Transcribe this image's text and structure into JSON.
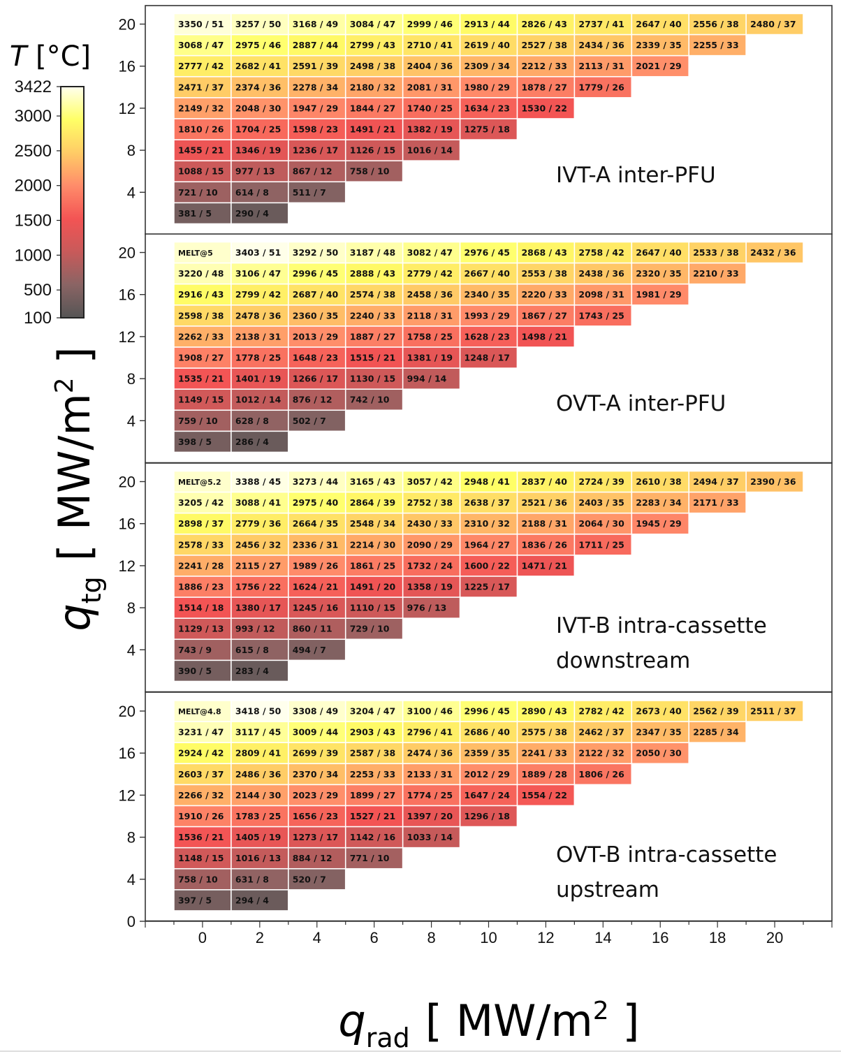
{
  "chart_data": {
    "type": "heatmap",
    "xlabel": {
      "symbol": "q",
      "subscript": "rad",
      "unit": "[ MW/m",
      "superscript": "2",
      "close": " ]"
    },
    "ylabel": {
      "symbol": "q",
      "subscript": "tg",
      "unit": "[ MW/m",
      "superscript": "2",
      "close": " ]"
    },
    "x_ticks": [
      "0",
      "2",
      "4",
      "6",
      "8",
      "10",
      "12",
      "14",
      "16",
      "18",
      "20"
    ],
    "y_ticks": [
      "4",
      "8",
      "12",
      "16",
      "20"
    ],
    "y_tick_zero": "0",
    "xlim": [
      -2,
      22
    ],
    "ylim_panel": [
      0,
      21.6
    ],
    "colorbar": {
      "label_symbol": "T",
      "label_unit": " [°C]",
      "min": 100,
      "max": 3422,
      "ticks": [
        "3422",
        "3000",
        "2500",
        "2000",
        "1500",
        "1000",
        "500",
        "100"
      ],
      "colors": [
        "#555555",
        "#8a6464",
        "#c85a5a",
        "#f35454",
        "#ff8c6a",
        "#ffcc66",
        "#ffff66",
        "#ffffee"
      ]
    },
    "panels": [
      {
        "title_lines": [
          "IVT-A inter-PFU"
        ],
        "rows": [
          [
            "381 / 5",
            "290 / 4"
          ],
          [
            "721 / 10",
            "614 / 8",
            "511 / 7"
          ],
          [
            "1088 / 15",
            "977 / 13",
            "867 / 12",
            "758 / 10"
          ],
          [
            "1455 / 21",
            "1346 / 19",
            "1236 / 17",
            "1126 / 15",
            "1016 / 14"
          ],
          [
            "1810 / 26",
            "1704 / 25",
            "1598 / 23",
            "1491 / 21",
            "1382 / 19",
            "1275 / 18"
          ],
          [
            "2149 / 32",
            "2048 / 30",
            "1947 / 29",
            "1844 / 27",
            "1740 / 25",
            "1634 / 23",
            "1530 / 22"
          ],
          [
            "2471 / 37",
            "2374 / 36",
            "2278 / 34",
            "2180 / 32",
            "2081 / 31",
            "1980 / 29",
            "1878 / 27",
            "1779 / 26"
          ],
          [
            "2777 / 42",
            "2682 / 41",
            "2591 / 39",
            "2498 / 38",
            "2404 / 36",
            "2309 / 34",
            "2212 / 33",
            "2113 / 31",
            "2021 / 29"
          ],
          [
            "3068 / 47",
            "2975 / 46",
            "2887 / 44",
            "2799 / 43",
            "2710 / 41",
            "2619 / 40",
            "2527 / 38",
            "2434 / 36",
            "2339 / 35",
            "2255 / 33"
          ],
          [
            "3350 / 51",
            "3257 / 50",
            "3168 / 49",
            "3084 / 47",
            "2999 / 46",
            "2913 / 44",
            "2826 / 43",
            "2737 / 41",
            "2647 / 40",
            "2556 / 38",
            "2480 / 37"
          ]
        ]
      },
      {
        "title_lines": [
          "OVT-A inter-PFU"
        ],
        "rows": [
          [
            "398 / 5",
            "286 / 4"
          ],
          [
            "759 / 10",
            "628 / 8",
            "502 / 7"
          ],
          [
            "1149 / 15",
            "1012 / 14",
            "876 / 12",
            "742 / 10"
          ],
          [
            "1535 / 21",
            "1401 / 19",
            "1266 / 17",
            "1130 / 15",
            "994 / 14"
          ],
          [
            "1908 / 27",
            "1778 / 25",
            "1648 / 23",
            "1515 / 21",
            "1381 / 19",
            "1248 / 17"
          ],
          [
            "2262 / 33",
            "2138 / 31",
            "2013 / 29",
            "1887 / 27",
            "1758 / 25",
            "1628 / 23",
            "1498 / 21"
          ],
          [
            "2598 / 38",
            "2478 / 36",
            "2360 / 35",
            "2240 / 33",
            "2118 / 31",
            "1993 / 29",
            "1867 / 27",
            "1743 / 25"
          ],
          [
            "2916 / 43",
            "2799 / 42",
            "2687 / 40",
            "2574 / 38",
            "2458 / 36",
            "2340 / 35",
            "2220 / 33",
            "2098 / 31",
            "1981 / 29"
          ],
          [
            "3220 / 48",
            "3106 / 47",
            "2996 / 45",
            "2888 / 43",
            "2779 / 42",
            "2667 / 40",
            "2553 / 38",
            "2438 / 36",
            "2320 / 35",
            "2210 / 33"
          ],
          [
            "MELT@5",
            "3403 / 51",
            "3292 / 50",
            "3187 / 48",
            "3082 / 47",
            "2976 / 45",
            "2868 / 43",
            "2758 / 42",
            "2647 / 40",
            "2533 / 38",
            "2432 / 36"
          ]
        ]
      },
      {
        "title_lines": [
          "IVT-B intra-cassette",
          "downstream"
        ],
        "rows": [
          [
            "390 / 5",
            "283 / 4"
          ],
          [
            "743 / 9",
            "615 / 8",
            "494 / 7"
          ],
          [
            "1129 / 13",
            "993 / 12",
            "860 / 11",
            "729 / 10"
          ],
          [
            "1514 / 18",
            "1380 / 17",
            "1245 / 16",
            "1110 / 15",
            "976 / 13"
          ],
          [
            "1886 / 23",
            "1756 / 22",
            "1624 / 21",
            "1491 / 20",
            "1358 / 19",
            "1225 / 17"
          ],
          [
            "2241 / 28",
            "2115 / 27",
            "1989 / 26",
            "1861 / 25",
            "1732 / 24",
            "1600 / 22",
            "1471 / 21"
          ],
          [
            "2578 / 33",
            "2456 / 32",
            "2336 / 31",
            "2214 / 30",
            "2090 / 29",
            "1964 / 27",
            "1836 / 26",
            "1711 / 25"
          ],
          [
            "2898 / 37",
            "2779 / 36",
            "2664 / 35",
            "2548 / 34",
            "2430 / 33",
            "2310 / 32",
            "2188 / 31",
            "2064 / 30",
            "1945 / 29"
          ],
          [
            "3205 / 42",
            "3088 / 41",
            "2975 / 40",
            "2864 / 39",
            "2752 / 38",
            "2638 / 37",
            "2521 / 36",
            "2403 / 35",
            "2283 / 34",
            "2171 / 33"
          ],
          [
            "MELT@5.2",
            "3388 / 45",
            "3273 / 44",
            "3165 / 43",
            "3057 / 42",
            "2948 / 41",
            "2837 / 40",
            "2724 / 39",
            "2610 / 38",
            "2494 / 37",
            "2390 / 36"
          ]
        ]
      },
      {
        "title_lines": [
          "OVT-B intra-cassette",
          "upstream"
        ],
        "rows": [
          [
            "397 / 5",
            "294 / 4"
          ],
          [
            "758 / 10",
            "631 / 8",
            "520 / 7"
          ],
          [
            "1148 / 15",
            "1016 / 13",
            "884 / 12",
            "771 / 10"
          ],
          [
            "1536 / 21",
            "1405 / 19",
            "1273 / 17",
            "1142 / 16",
            "1033 / 14"
          ],
          [
            "1910 / 26",
            "1783 / 25",
            "1656 / 23",
            "1527 / 21",
            "1397 / 20",
            "1296 / 18"
          ],
          [
            "2266 / 32",
            "2144 / 30",
            "2023 / 29",
            "1899 / 27",
            "1774 / 25",
            "1647 / 24",
            "1554 / 22"
          ],
          [
            "2603 / 37",
            "2486 / 36",
            "2370 / 34",
            "2253 / 33",
            "2133 / 31",
            "2012 / 29",
            "1889 / 28",
            "1806 / 26"
          ],
          [
            "2924 / 42",
            "2809 / 41",
            "2699 / 39",
            "2587 / 38",
            "2474 / 36",
            "2359 / 35",
            "2241 / 33",
            "2122 / 32",
            "2050 / 30"
          ],
          [
            "3231 / 47",
            "3117 / 45",
            "3009 / 44",
            "2903 / 43",
            "2796 / 41",
            "2686 / 40",
            "2575 / 38",
            "2462 / 37",
            "2347 / 35",
            "2285 / 34"
          ],
          [
            "MELT@4.8",
            "3418 / 50",
            "3308 / 49",
            "3204 / 47",
            "3100 / 46",
            "2996 / 45",
            "2890 / 43",
            "2782 / 42",
            "2673 / 40",
            "2562 / 39",
            "2511 / 37"
          ]
        ]
      }
    ]
  }
}
